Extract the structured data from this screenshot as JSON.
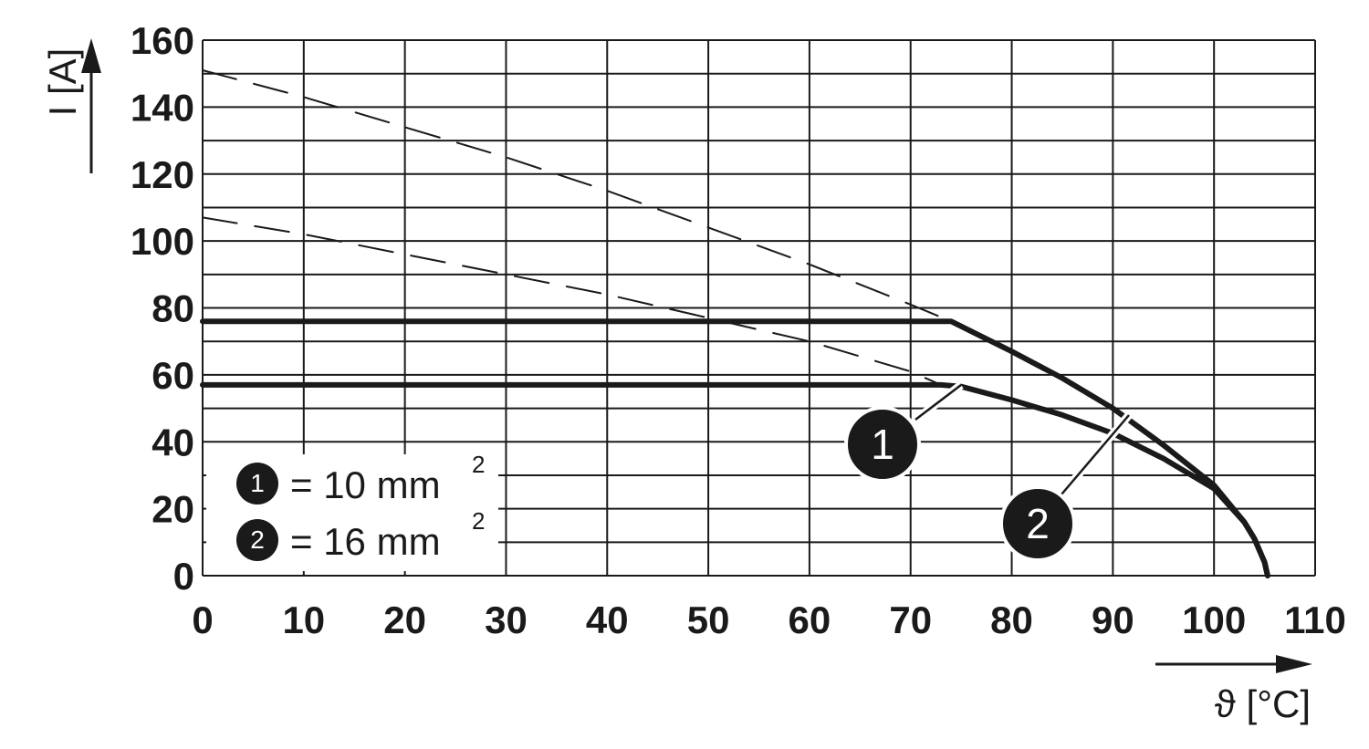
{
  "chart_data": {
    "type": "line",
    "xlabel": "ϑ [°C]",
    "ylabel": "I [A]",
    "xlim": [
      0,
      110
    ],
    "ylim": [
      0,
      160
    ],
    "x_ticks": [
      "0",
      "10",
      "20",
      "30",
      "40",
      "50",
      "60",
      "70",
      "80",
      "90",
      "100",
      "110"
    ],
    "y_ticks": [
      "0",
      "20",
      "40",
      "60",
      "80",
      "100",
      "120",
      "140",
      "160"
    ],
    "grid": true,
    "series": [
      {
        "name": "1",
        "style": "solid",
        "points": [
          [
            0,
            57
          ],
          [
            73,
            57
          ],
          [
            75,
            56.5
          ],
          [
            80,
            52.5
          ],
          [
            85,
            48
          ],
          [
            90,
            42.5
          ],
          [
            95,
            35
          ],
          [
            100,
            26
          ],
          [
            103,
            16
          ],
          [
            104,
            11
          ],
          [
            105,
            4
          ],
          [
            105.3,
            0
          ]
        ]
      },
      {
        "name": "2",
        "style": "solid",
        "points": [
          [
            0,
            76
          ],
          [
            74,
            76
          ],
          [
            76,
            73
          ],
          [
            80,
            67
          ],
          [
            85,
            59
          ],
          [
            90,
            50
          ],
          [
            95,
            39
          ],
          [
            100,
            27
          ],
          [
            103,
            16
          ],
          [
            104,
            11
          ],
          [
            105,
            4
          ],
          [
            105.3,
            0
          ]
        ]
      },
      {
        "name": "1",
        "style": "dashed",
        "points": [
          [
            0,
            107
          ],
          [
            10,
            102
          ],
          [
            20,
            96
          ],
          [
            30,
            90
          ],
          [
            40,
            84
          ],
          [
            50,
            77
          ],
          [
            60,
            70
          ],
          [
            70,
            61
          ],
          [
            73,
            57
          ]
        ]
      },
      {
        "name": "2",
        "style": "dashed",
        "points": [
          [
            0,
            151
          ],
          [
            10,
            143
          ],
          [
            20,
            134
          ],
          [
            30,
            125
          ],
          [
            40,
            115
          ],
          [
            50,
            104
          ],
          [
            60,
            93
          ],
          [
            70,
            81
          ],
          [
            74,
            76
          ]
        ]
      }
    ],
    "annotations": [
      {
        "label": "1",
        "x": 75,
        "y": 56
      },
      {
        "label": "2",
        "x": 91,
        "y": 47
      }
    ],
    "legend": {
      "placement": "bottom-left",
      "items": [
        {
          "badge": "1",
          "text": "= 10 mm",
          "sup": "2"
        },
        {
          "badge": "2",
          "text": "= 16 mm",
          "sup": "2"
        }
      ]
    }
  }
}
